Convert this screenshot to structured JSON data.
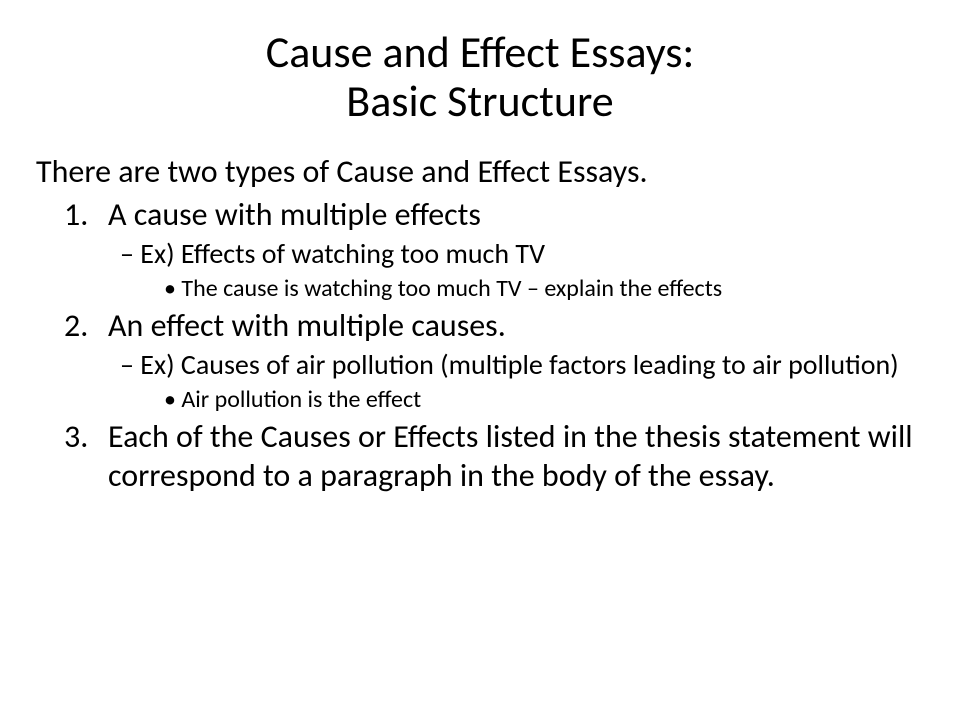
{
  "slide": {
    "title_line1": "Cause and Effect Essays:",
    "title_line2": "Basic Structure",
    "intro": "There are two types of Cause and Effect Essays.",
    "items": [
      {
        "text": "A cause with multiple effects",
        "sub": "Ex) Effects of watching too much TV",
        "subsub": "The cause is watching too much TV – explain the effects"
      },
      {
        "text": "An effect with multiple causes.",
        "sub": "Ex) Causes of air pollution (multiple factors leading to air pollution)",
        "subsub": "Air pollution is the effect"
      },
      {
        "text": "Each of the Causes or Effects listed in the thesis statement will correspond to a paragraph in the body of the essay."
      }
    ]
  },
  "style": {
    "background_color": "#ffffff",
    "text_color": "#000000",
    "title_fontsize": 44,
    "body_fontsize": 32,
    "sub1_fontsize": 28,
    "sub2_fontsize": 24,
    "font_family": "Calibri",
    "bullet_level2_char": "–",
    "bullet_level3_char": "•"
  }
}
